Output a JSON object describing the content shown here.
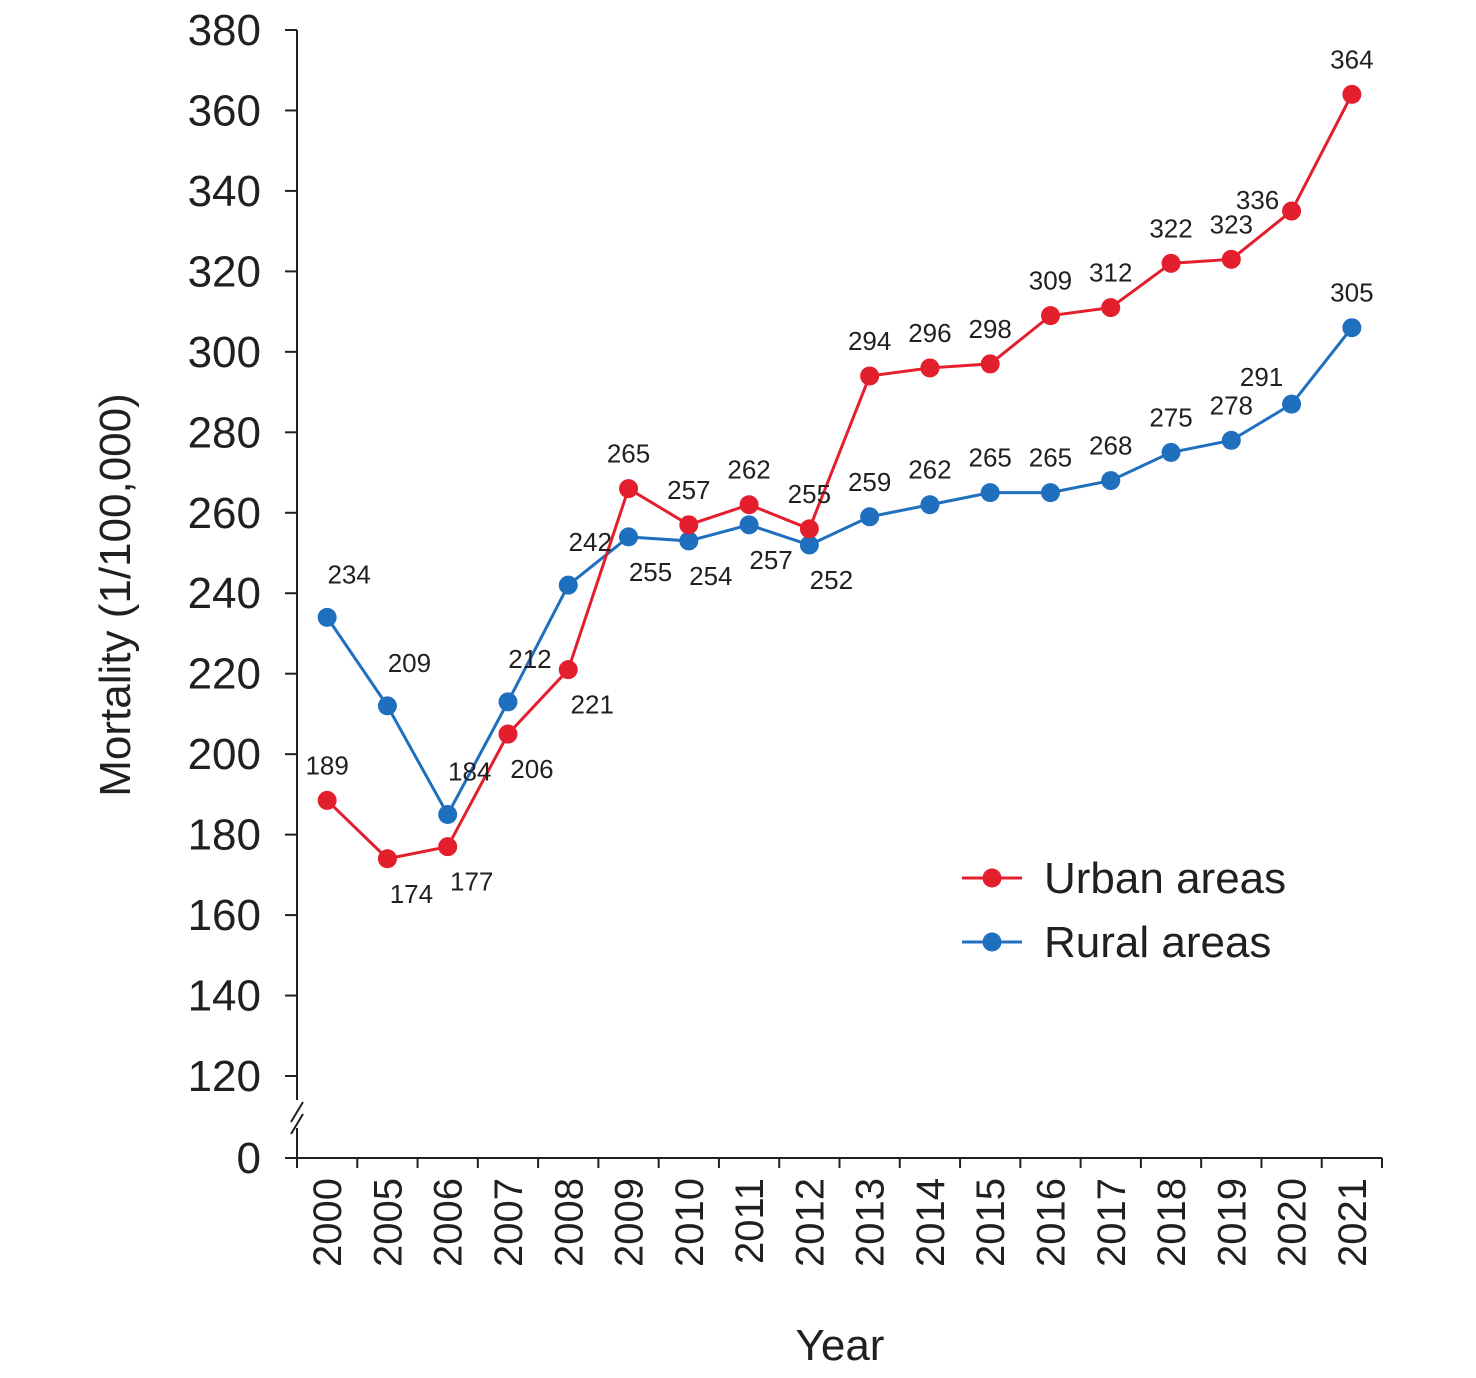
{
  "chart_data": {
    "type": "line",
    "title": "",
    "xlabel": "Year",
    "ylabel": "Mortality (1/100,000)",
    "categories": [
      "2000",
      "2005",
      "2006",
      "2007",
      "2008",
      "2009",
      "2010",
      "2011",
      "2012",
      "2013",
      "2014",
      "2015",
      "2016",
      "2017",
      "2018",
      "2019",
      "2020",
      "2021"
    ],
    "y_ticks": [
      0,
      120,
      140,
      160,
      180,
      200,
      220,
      240,
      260,
      280,
      300,
      320,
      340,
      360,
      380
    ],
    "ylim": [
      110,
      380
    ],
    "axis_break": true,
    "grid": false,
    "legend_position": "lower-right",
    "series": [
      {
        "name": "Urban areas",
        "color": "#e31e2d",
        "values": [
          189,
          174,
          177,
          206,
          221,
          265,
          257,
          262,
          255,
          294,
          296,
          298,
          309,
          312,
          322,
          323,
          336,
          364
        ],
        "labels": [
          "189",
          "174",
          "177",
          "206",
          "221",
          "265",
          "257",
          "262",
          "255",
          "294",
          "296",
          "298",
          "309",
          "312",
          "322",
          "323",
          "",
          "364"
        ],
        "plot_values": [
          188.5,
          174,
          177,
          205,
          221,
          266,
          257,
          262,
          256,
          294,
          296,
          297,
          309,
          311,
          322,
          323,
          335,
          364
        ],
        "label_pos": [
          "above",
          "below",
          "below",
          "below",
          "below",
          "above",
          "above",
          "above",
          "above",
          "above",
          "above",
          "above",
          "above",
          "above",
          "above",
          "above",
          "left",
          "above"
        ]
      },
      {
        "name": "Rural areas",
        "color": "#1f6fbf",
        "values": [
          234,
          209,
          184,
          212,
          242,
          255,
          254,
          257,
          252,
          259,
          262,
          265,
          265,
          268,
          275,
          278,
          291,
          305
        ],
        "labels": [
          "234",
          "209",
          "184",
          "212",
          "242",
          "255",
          "254",
          "257",
          "252",
          "259",
          "262",
          "265",
          "265",
          "268",
          "275",
          "278",
          "291",
          "305"
        ],
        "plot_values": [
          234,
          212,
          185,
          213,
          242,
          254,
          253,
          257,
          252,
          259,
          262,
          265,
          265,
          268,
          275,
          278,
          287,
          306
        ],
        "label_pos": [
          "above",
          "above",
          "above",
          "above",
          "above",
          "below",
          "below",
          "below",
          "below",
          "above",
          "above",
          "above",
          "above",
          "above",
          "above",
          "above",
          "left-up",
          "above"
        ]
      }
    ],
    "extra_labels": [
      {
        "text": "336",
        "series": 0,
        "index": 16,
        "pos": "left"
      }
    ]
  }
}
